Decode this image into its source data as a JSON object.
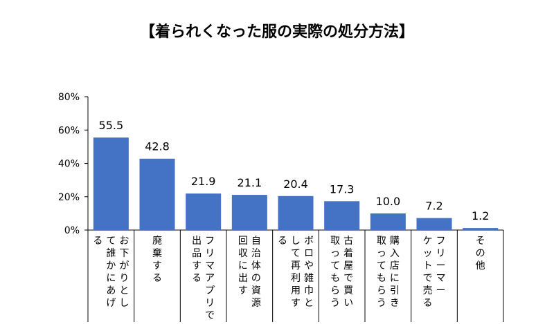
{
  "chart_data": {
    "type": "bar",
    "title": "【着られくなった服の実際の処分方法】",
    "ylim": [
      0,
      80
    ],
    "yticks": [
      "0%",
      "20%",
      "40%",
      "60%",
      "80%"
    ],
    "grid": false,
    "bar_color": "#4472C4",
    "categories": [
      "お下がりとして誰かにあげる",
      "廃棄する",
      "フリマアプリで出品する",
      "自治体の資源回収に出す",
      "ボロや雑巾として再利用する",
      "古着屋で買い取ってもらう",
      "購入店に引き取ってもらう",
      "フリーマーケットで売る",
      "その他"
    ],
    "category_columns": [
      [
        "お下がりとし",
        "て誰かにあげ",
        "る"
      ],
      [
        "廃棄する"
      ],
      [
        "フリマアプリで",
        "出品する"
      ],
      [
        "自治体の資源",
        "回収に出す"
      ],
      [
        "ボロや雑巾と",
        "して再利用す",
        "る"
      ],
      [
        "古着屋で買い",
        "取ってもらう"
      ],
      [
        "購入店に引き",
        "取ってもらう"
      ],
      [
        "フリーマー",
        "ケットで売る"
      ],
      [
        "その他"
      ]
    ],
    "values": [
      55.5,
      42.8,
      21.9,
      21.1,
      20.4,
      17.3,
      10.0,
      7.2,
      1.2
    ],
    "data_labels": [
      "55.5",
      "42.8",
      "21.9",
      "21.1",
      "20.4",
      "17.3",
      "10.0",
      "7.2",
      "1.2"
    ]
  }
}
